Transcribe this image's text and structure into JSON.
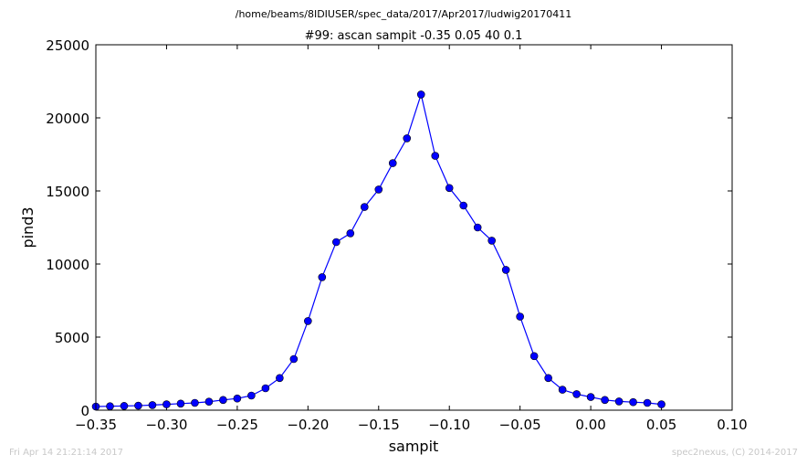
{
  "chart_data": {
    "type": "line",
    "suptitle": "/home/beams/8IDIUSER/spec_data/2017/Apr2017/ludwig20170411",
    "title": "#99: ascan  sampit -0.35 0.05  40 0.1",
    "xlabel": "sampit",
    "ylabel": "pind3",
    "xlim": [
      -0.35,
      0.1
    ],
    "ylim": [
      0,
      25000
    ],
    "x_ticks": [
      "−0.35",
      "−0.30",
      "−0.25",
      "−0.20",
      "−0.15",
      "−0.10",
      "−0.05",
      "0.00",
      "0.05",
      "0.10"
    ],
    "x_tick_values": [
      -0.35,
      -0.3,
      -0.25,
      -0.2,
      -0.15,
      -0.1,
      -0.05,
      0.0,
      0.05,
      0.1
    ],
    "y_ticks": [
      "0",
      "5000",
      "10000",
      "15000",
      "20000",
      "25000"
    ],
    "y_tick_values": [
      0,
      5000,
      10000,
      15000,
      20000,
      25000
    ],
    "grid": false,
    "line_color": "#0000ff",
    "marker_color": "#0000ff",
    "series": [
      {
        "x": [
          -0.35,
          -0.34,
          -0.33,
          -0.32,
          -0.31,
          -0.3,
          -0.29,
          -0.28,
          -0.27,
          -0.26,
          -0.25,
          -0.24,
          -0.23,
          -0.22,
          -0.21,
          -0.2,
          -0.19,
          -0.18,
          -0.17,
          -0.16,
          -0.15,
          -0.14,
          -0.13,
          -0.12,
          -0.11,
          -0.1,
          -0.09,
          -0.08,
          -0.07,
          -0.06,
          -0.05,
          -0.04,
          -0.03,
          -0.02,
          -0.01,
          0.0,
          0.01,
          0.02,
          0.03,
          0.04,
          0.05
        ],
        "y": [
          250,
          270,
          290,
          310,
          350,
          400,
          450,
          500,
          580,
          700,
          800,
          1000,
          1500,
          2200,
          3500,
          6100,
          9100,
          11500,
          12100,
          13900,
          15100,
          16900,
          18600,
          21600,
          17400,
          15200,
          14000,
          12500,
          11600,
          9600,
          6400,
          3700,
          2200,
          1400,
          1100,
          900,
          700,
          600,
          550,
          500,
          400
        ]
      }
    ]
  },
  "footer": {
    "timestamp": "Fri Apr 14 21:21:14 2017",
    "credit": "spec2nexus, (C) 2014-2017"
  }
}
